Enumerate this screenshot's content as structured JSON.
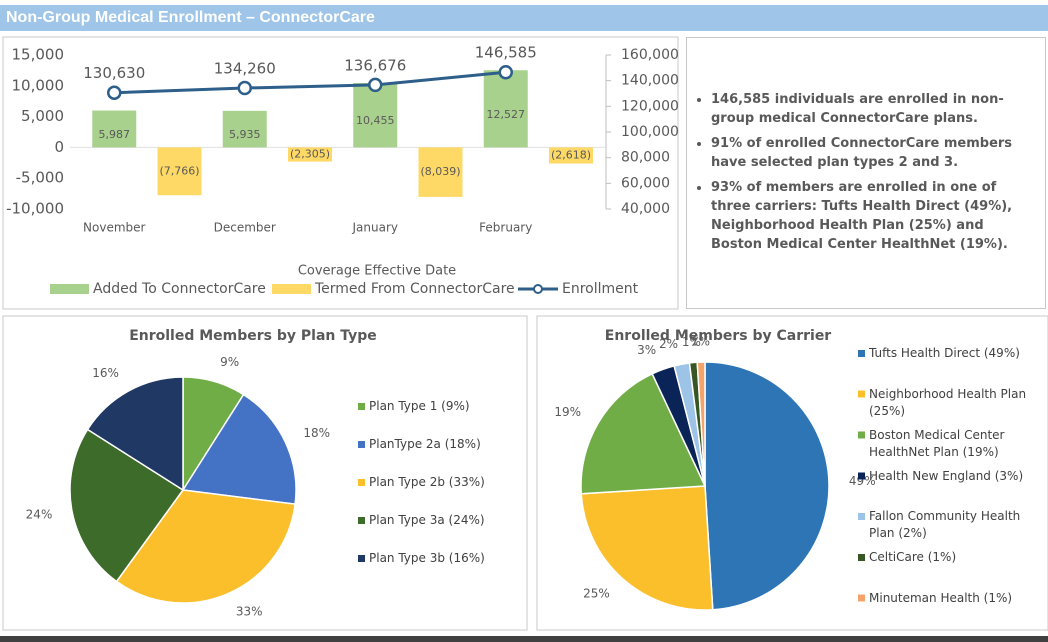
{
  "header": {
    "title": "Non-Group Medical Enrollment – ConnectorCare"
  },
  "bullets": [
    "146,585 individuals are enrolled in non-group medical ConnectorCare plans.",
    "91% of enrolled ConnectorCare members have selected plan types 2 and 3.",
    "93% of members are enrolled in one of three carriers: Tufts Health Direct (49%), Neighborhood Health Plan (25%) and Boston Medical Center HealthNet (19%)."
  ],
  "chart_data": [
    {
      "type": "bar",
      "x_label": "Coverage Effective Date",
      "categories": [
        "November",
        "December",
        "January",
        "February"
      ],
      "series": [
        {
          "name": "Added To ConnectorCare",
          "color": "#a9d18e",
          "values": [
            5987,
            5935,
            10455,
            12527
          ],
          "value_labels": [
            "5,987",
            "5,935",
            "10,455",
            "12,527"
          ]
        },
        {
          "name": "Termed From ConnectorCare",
          "color": "#ffd966",
          "values": [
            -7766,
            -2305,
            -8039,
            -2618
          ],
          "value_labels": [
            "(7,766)",
            "(2,305)",
            "(8,039)",
            "(2,618)"
          ]
        },
        {
          "name": "Enrollment",
          "type": "line",
          "axis": "y2",
          "color": "#2e5f8a",
          "values": [
            130630,
            134260,
            136676,
            146585
          ],
          "value_labels": [
            "130,630",
            "134,260",
            "136,676",
            "146,585"
          ]
        }
      ],
      "ylim": [
        -10000,
        15000
      ],
      "yticks": [
        {
          "value": -10000,
          "label": "-10,000"
        },
        {
          "value": -5000,
          "label": "-5,000"
        },
        0,
        {
          "value": 5000,
          "label": "5,000"
        },
        {
          "value": 10000,
          "label": "10,000"
        },
        {
          "value": 15000,
          "label": "15,000"
        }
      ],
      "y2lim": [
        40000,
        160000
      ],
      "y2ticks": [
        {
          "value": 40000,
          "label": "40,000"
        },
        {
          "value": 60000,
          "label": "60,000"
        },
        {
          "value": 80000,
          "label": "80,000"
        },
        {
          "value": 100000,
          "label": "100,000"
        },
        {
          "value": 120000,
          "label": "120,000"
        },
        {
          "value": 140000,
          "label": "140,000"
        },
        {
          "value": 160000,
          "label": "160,000"
        }
      ],
      "grid": false
    },
    {
      "type": "pie",
      "title": "Enrolled Members by Plan Type",
      "categories": [
        "Plan Type 1 (9%)",
        "PlanType 2a (18%)",
        "Plan Type 2b (33%)",
        "Plan Type 3a (24%)",
        "Plan Type 3b (16%)"
      ],
      "values": [
        9,
        18,
        33,
        24,
        16
      ],
      "value_labels": [
        "9%",
        "18%",
        "33%",
        "24%",
        "16%"
      ],
      "colors": [
        "#70ad47",
        "#4472c4",
        "#fbbf2c",
        "#3d6b2a",
        "#203864"
      ]
    },
    {
      "type": "pie",
      "title": "Enrolled Members by Carrier",
      "categories": [
        "Tufts Health Direct (49%)",
        "Neighborhood Health Plan (25%)",
        "Boston Medical Center HealthNet Plan (19%)",
        "Health New England (3%)",
        "Fallon Community Health Plan (2%)",
        "CeltiCare (1%)",
        "Minuteman Health (1%)"
      ],
      "values": [
        49,
        25,
        19,
        3,
        2,
        1,
        1
      ],
      "value_labels": [
        "49%",
        "25%",
        "19%",
        "3%",
        "2%",
        "1%",
        "1%"
      ],
      "colors": [
        "#2e75b6",
        "#fbbf2c",
        "#70ad47",
        "#0b2458",
        "#9dc3e6",
        "#375623",
        "#f4a46a"
      ]
    }
  ]
}
